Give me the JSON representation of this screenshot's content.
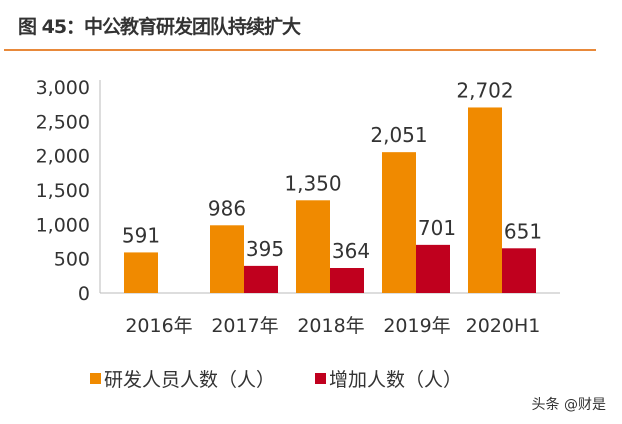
{
  "title": "图 45：中公教育研发团队持续扩大",
  "watermark": "头条 @财是",
  "colors": {
    "series1": "#f08a00",
    "series2": "#c0001e",
    "rule": "#e8893a"
  },
  "chart_data": {
    "type": "bar",
    "categories": [
      "2016年",
      "2017年",
      "2018年",
      "2019年",
      "2020H1"
    ],
    "series": [
      {
        "name": "研发人员人数（人）",
        "values": [
          591,
          986,
          1350,
          2051,
          2702
        ],
        "labels": [
          "591",
          "986",
          "1,350",
          "2,051",
          "2,702"
        ]
      },
      {
        "name": "增加人数（人）",
        "values": [
          null,
          395,
          364,
          701,
          651
        ],
        "labels": [
          "",
          "395",
          "364",
          "701",
          "651"
        ]
      }
    ],
    "ylim": [
      0,
      3000
    ],
    "yticks": [
      "0",
      "500",
      "1,000",
      "1,500",
      "2,000",
      "2,500",
      "3,000"
    ],
    "grid": false,
    "legend": "bottom"
  }
}
